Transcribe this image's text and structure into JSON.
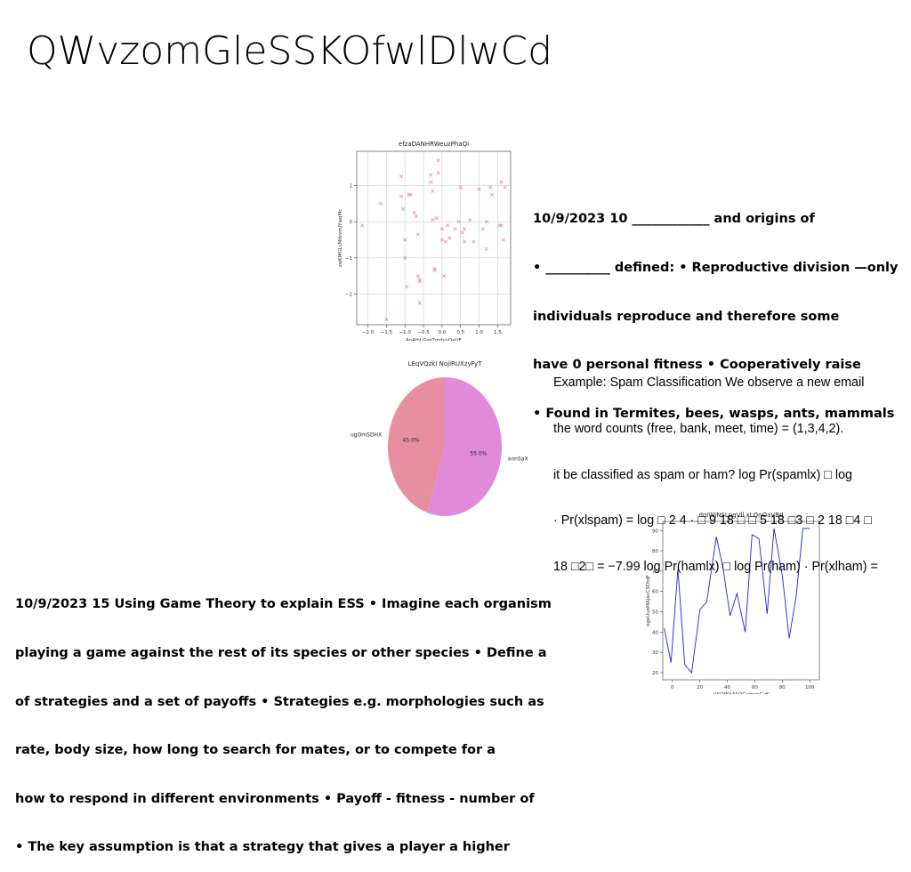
{
  "title": "QWvzomGleSSKOfwlDlwCd",
  "text_blocks": {
    "block_top_right": [
      "10/9/2023 10 ____________ and origins of",
      "• __________ defined: • Reproductive division —only",
      "individuals reproduce and therefore some",
      "have 0 personal fitness • Cooperatively raise",
      "• Found in Termites, bees, wasps, ants, mammals"
    ],
    "block_example": [
      "Example: Spam Classification We observe a new email",
      "the word counts (free, bank, meet, time) = (1,3,4,2).",
      "it be classified as spam or ham? log Pr(spamlx) □ log",
      "· Pr(xlspam) = log □ 2 4 · □ 9 18 □ □ 5 18 □3 □ 2 18 □4 □",
      "18 □2□ = −7.99 log Pr(hamlx) □ log Pr(ham) · Pr(xlham) ="
    ],
    "block_bottom_left": [
      "10/9/2023 15 Using Game Theory to explain ESS • Imagine each organism",
      "playing a game against the rest of its species or other species • Define a",
      "of strategies and a set of payoffs • Strategies e.g. morphologies such as",
      "rate, body size, how long to search for mates, or to compete for a",
      "how to respond in different environments • Payoff - fitness - number of",
      "• The key assumption is that a strategy that gives a player a higher"
    ]
  },
  "chart_data": [
    {
      "type": "scatter",
      "title": "efzaDANHRWeuzPhaQi",
      "xlabel": "AoAIhLGseTmdvsOaUE",
      "ylabel": "zwKMGLcMtkvmjYwqMc",
      "xlim": [
        -2.3,
        1.85
      ],
      "ylim": [
        -2.85,
        1.95
      ],
      "xticks": [
        -2.0,
        -1.5,
        -1.0,
        -0.5,
        0.0,
        0.5,
        1.0,
        1.5
      ],
      "xtick_labels": [
        "−2.0",
        "−1.5",
        "−1.0",
        "−0.5",
        "0.0",
        "0.5",
        "1.0",
        "1.5"
      ],
      "yticks": [
        -2,
        -1,
        0,
        1
      ],
      "ytick_labels": [
        "−2",
        "−1",
        "0",
        "1"
      ],
      "grid": true,
      "marker": "x",
      "color": "#ee8a9e",
      "points": [
        [
          -2.15,
          -0.1
        ],
        [
          -1.65,
          0.5
        ],
        [
          -1.5,
          -2.7
        ],
        [
          -1.1,
          1.25
        ],
        [
          -1.1,
          0.7
        ],
        [
          -1.05,
          0.35
        ],
        [
          -1.0,
          -0.5
        ],
        [
          -1.0,
          -1.0
        ],
        [
          -0.95,
          -1.8
        ],
        [
          -0.9,
          0.75
        ],
        [
          -0.85,
          0.75
        ],
        [
          -0.75,
          0.25
        ],
        [
          -0.7,
          0.15
        ],
        [
          -0.65,
          -0.35
        ],
        [
          -0.65,
          -1.5
        ],
        [
          -0.6,
          -2.25
        ],
        [
          -0.6,
          -1.6
        ],
        [
          -0.6,
          -1.65
        ],
        [
          -0.3,
          1.3
        ],
        [
          -0.3,
          1.1
        ],
        [
          -0.25,
          0.85
        ],
        [
          -0.25,
          0.05
        ],
        [
          -0.2,
          -1.3
        ],
        [
          -0.2,
          -1.35
        ],
        [
          -0.15,
          0.1
        ],
        [
          -0.1,
          1.7
        ],
        [
          -0.1,
          1.35
        ],
        [
          0.0,
          -0.2
        ],
        [
          0.0,
          -0.5
        ],
        [
          0.05,
          -1.5
        ],
        [
          0.1,
          -0.55
        ],
        [
          0.15,
          -0.1
        ],
        [
          0.2,
          -0.45
        ],
        [
          0.35,
          -0.2
        ],
        [
          0.45,
          0.0
        ],
        [
          0.5,
          0.95
        ],
        [
          0.55,
          -0.3
        ],
        [
          0.6,
          -0.2
        ],
        [
          0.6,
          -0.55
        ],
        [
          0.75,
          0.05
        ],
        [
          0.85,
          -0.55
        ],
        [
          1.0,
          0.9
        ],
        [
          1.1,
          -0.2
        ],
        [
          1.2,
          0.0
        ],
        [
          1.2,
          -0.75
        ],
        [
          1.3,
          0.95
        ],
        [
          1.35,
          0.75
        ],
        [
          1.55,
          -0.1
        ],
        [
          1.6,
          1.1
        ],
        [
          1.65,
          -0.5
        ],
        [
          1.7,
          0.95
        ],
        [
          1.6,
          -0.1
        ]
      ]
    },
    {
      "type": "pie",
      "title": "LEqVQzkI NojiRUXzyFyT",
      "labels": [
        "ugOmSDHX",
        "xnnSaX"
      ],
      "values": [
        45.0,
        55.0
      ],
      "value_labels": [
        "45.0%",
        "55.0%"
      ],
      "colors": [
        "#e78fa1",
        "#df8bd9"
      ],
      "startangle": 90,
      "direction": "counterclockwise"
    },
    {
      "type": "line",
      "title": "dqiWjNSLpgVll xLQnOaVBd",
      "xlabel": "VXQfNkASQGsjmmGzK",
      "ylabel": "ogoUuoMAjacCSOtdF",
      "xlim": [
        -7,
        107
      ],
      "ylim": [
        16.5,
        94.5
      ],
      "xticks": [
        0,
        20,
        40,
        60,
        80,
        100
      ],
      "yticks": [
        20,
        30,
        40,
        50,
        60,
        70,
        80,
        90
      ],
      "grid": false,
      "color": "#2222dd",
      "series": [
        {
          "x": [
            -6,
            -1,
            4,
            9,
            14,
            20,
            25,
            32,
            37,
            42,
            47,
            53,
            58,
            63,
            69,
            74,
            80,
            85,
            90,
            95,
            100
          ],
          "values": [
            42,
            25,
            71,
            24,
            20,
            51,
            55,
            87,
            71,
            48,
            59,
            40,
            88,
            86,
            49,
            91,
            68,
            37,
            57,
            91,
            91
          ]
        }
      ]
    }
  ]
}
